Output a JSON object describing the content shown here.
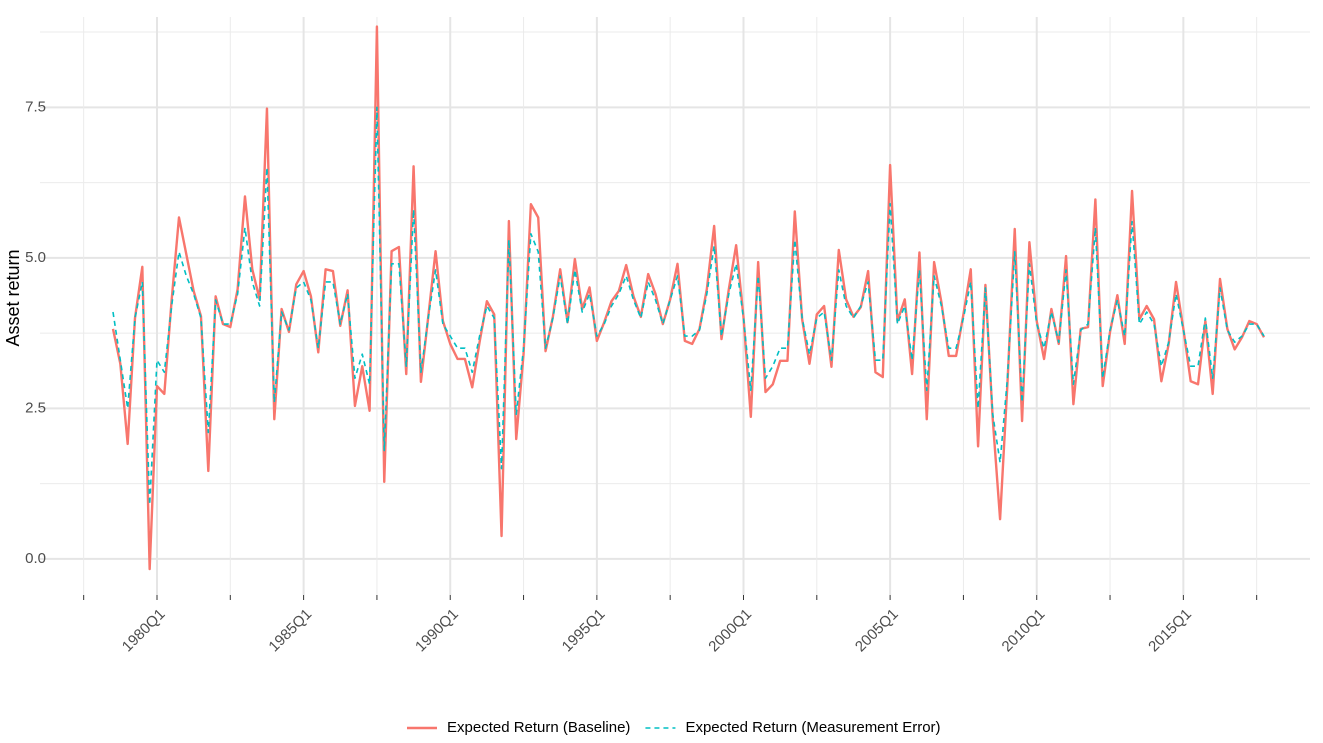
{
  "chart_data": {
    "type": "line",
    "y_label": "Asset return",
    "x": [
      "1978Q3",
      "1978Q4",
      "1979Q1",
      "1979Q2",
      "1979Q3",
      "1979Q4",
      "1980Q1",
      "1980Q2",
      "1980Q3",
      "1980Q4",
      "1981Q1",
      "1981Q2",
      "1981Q3",
      "1981Q4",
      "1982Q1",
      "1982Q2",
      "1982Q3",
      "1982Q4",
      "1983Q1",
      "1983Q2",
      "1983Q3",
      "1983Q4",
      "1984Q1",
      "1984Q2",
      "1984Q3",
      "1984Q4",
      "1985Q1",
      "1985Q2",
      "1985Q3",
      "1985Q4",
      "1986Q1",
      "1986Q2",
      "1986Q3",
      "1986Q4",
      "1987Q1",
      "1987Q2",
      "1987Q3",
      "1987Q4",
      "1988Q1",
      "1988Q2",
      "1988Q3",
      "1988Q4",
      "1989Q1",
      "1989Q2",
      "1989Q3",
      "1989Q4",
      "1990Q1",
      "1990Q2",
      "1990Q3",
      "1990Q4",
      "1991Q1",
      "1991Q2",
      "1991Q3",
      "1991Q4",
      "1992Q1",
      "1992Q2",
      "1992Q3",
      "1992Q4",
      "1993Q1",
      "1993Q2",
      "1993Q3",
      "1993Q4",
      "1994Q1",
      "1994Q2",
      "1994Q3",
      "1994Q4",
      "1995Q1",
      "1995Q2",
      "1995Q3",
      "1995Q4",
      "1996Q1",
      "1996Q2",
      "1996Q3",
      "1996Q4",
      "1997Q1",
      "1997Q2",
      "1997Q3",
      "1997Q4",
      "1998Q1",
      "1998Q2",
      "1998Q3",
      "1998Q4",
      "1999Q1",
      "1999Q2",
      "1999Q3",
      "1999Q4",
      "2000Q1",
      "2000Q2",
      "2000Q3",
      "2000Q4",
      "2001Q1",
      "2001Q2",
      "2001Q3",
      "2001Q4",
      "2002Q1",
      "2002Q2",
      "2002Q3",
      "2002Q4",
      "2003Q1",
      "2003Q2",
      "2003Q3",
      "2003Q4",
      "2004Q1",
      "2004Q2",
      "2004Q3",
      "2004Q4",
      "2005Q1",
      "2005Q2",
      "2005Q3",
      "2005Q4",
      "2006Q1",
      "2006Q2",
      "2006Q3",
      "2006Q4",
      "2007Q1",
      "2007Q2",
      "2007Q3",
      "2007Q4",
      "2008Q1",
      "2008Q2",
      "2008Q3",
      "2008Q4",
      "2009Q1",
      "2009Q2",
      "2009Q3",
      "2009Q4",
      "2010Q1",
      "2010Q2",
      "2010Q3",
      "2010Q4",
      "2011Q1",
      "2011Q2",
      "2011Q3",
      "2011Q4",
      "2012Q1",
      "2012Q2",
      "2012Q3",
      "2012Q4",
      "2013Q1",
      "2013Q2",
      "2013Q3",
      "2013Q4",
      "2014Q1",
      "2014Q2",
      "2014Q3",
      "2014Q4",
      "2015Q1",
      "2015Q2",
      "2015Q3",
      "2015Q4",
      "2016Q1",
      "2016Q2",
      "2016Q3",
      "2016Q4",
      "2017Q1",
      "2017Q2",
      "2017Q3",
      "2017Q4"
    ],
    "series": [
      {
        "name": "Expected Return (Baseline)",
        "color": "#F8766D",
        "dash": false,
        "values": [
          3.82,
          3.24,
          1.91,
          4.0,
          4.85,
          -0.17,
          2.87,
          2.74,
          4.3,
          5.67,
          5.06,
          4.45,
          4.03,
          1.46,
          4.36,
          3.9,
          3.85,
          4.48,
          6.02,
          4.81,
          4.31,
          7.48,
          2.32,
          4.15,
          3.77,
          4.56,
          4.78,
          4.36,
          3.43,
          4.81,
          4.78,
          3.87,
          4.46,
          2.54,
          3.2,
          2.46,
          8.84,
          1.28,
          5.11,
          5.18,
          3.07,
          6.52,
          2.94,
          4.02,
          5.11,
          3.95,
          3.57,
          3.32,
          3.32,
          2.85,
          3.6,
          4.28,
          4.06,
          0.38,
          5.61,
          1.99,
          3.4,
          5.89,
          5.67,
          3.45,
          4.02,
          4.81,
          3.93,
          4.98,
          4.15,
          4.51,
          3.62,
          3.93,
          4.28,
          4.45,
          4.88,
          4.36,
          4.02,
          4.73,
          4.4,
          3.9,
          4.31,
          4.9,
          3.62,
          3.57,
          3.82,
          4.48,
          5.53,
          3.65,
          4.48,
          5.21,
          4.02,
          2.36,
          4.93,
          2.77,
          2.9,
          3.29,
          3.29,
          5.77,
          3.98,
          3.24,
          4.06,
          4.2,
          3.19,
          5.13,
          4.31,
          4.02,
          4.18,
          4.78,
          3.1,
          3.02,
          6.54,
          3.95,
          4.31,
          3.07,
          5.09,
          2.32,
          4.93,
          4.26,
          3.37,
          3.37,
          4.06,
          4.81,
          1.87,
          4.55,
          2.32,
          0.66,
          2.9,
          5.48,
          2.29,
          5.26,
          3.95,
          3.32,
          4.15,
          3.57,
          5.03,
          2.57,
          3.82,
          3.85,
          5.97,
          2.87,
          3.77,
          4.38,
          3.57,
          6.11,
          3.98,
          4.2,
          3.98,
          2.95,
          3.57,
          4.6,
          3.82,
          2.95,
          2.9,
          3.95,
          2.74,
          4.65,
          3.82,
          3.48,
          3.68,
          3.95,
          3.9,
          3.68
        ]
      },
      {
        "name": "Expected Return (Measurement Error)",
        "color": "#00BFC4",
        "dash": true,
        "values": [
          4.1,
          3.3,
          2.5,
          4.0,
          4.6,
          0.9,
          3.3,
          3.1,
          4.2,
          5.1,
          4.7,
          4.4,
          4.0,
          2.1,
          4.3,
          3.9,
          3.9,
          4.4,
          5.5,
          4.6,
          4.2,
          6.5,
          2.6,
          4.1,
          3.8,
          4.5,
          4.6,
          4.3,
          3.5,
          4.6,
          4.6,
          3.9,
          4.4,
          3.0,
          3.4,
          2.9,
          7.5,
          1.8,
          4.9,
          4.9,
          3.2,
          5.8,
          3.1,
          4.0,
          4.8,
          3.9,
          3.7,
          3.5,
          3.5,
          3.1,
          3.7,
          4.2,
          4.0,
          1.5,
          5.3,
          2.4,
          3.5,
          5.4,
          5.1,
          3.5,
          4.0,
          4.7,
          3.9,
          4.8,
          4.1,
          4.4,
          3.7,
          3.9,
          4.2,
          4.4,
          4.7,
          4.3,
          4.0,
          4.6,
          4.3,
          3.9,
          4.3,
          4.7,
          3.7,
          3.7,
          3.8,
          4.4,
          5.2,
          3.7,
          4.4,
          4.9,
          4.0,
          2.8,
          4.7,
          3.0,
          3.2,
          3.5,
          3.5,
          5.3,
          4.0,
          3.4,
          4.0,
          4.1,
          3.3,
          4.8,
          4.2,
          4.0,
          4.2,
          4.6,
          3.3,
          3.3,
          5.9,
          3.9,
          4.2,
          3.3,
          4.8,
          2.8,
          4.7,
          4.2,
          3.5,
          3.5,
          4.0,
          4.6,
          2.5,
          4.5,
          2.4,
          1.6,
          3.0,
          5.1,
          2.6,
          4.9,
          3.9,
          3.5,
          4.1,
          3.6,
          4.8,
          2.9,
          3.8,
          3.9,
          5.5,
          3.0,
          3.8,
          4.3,
          3.7,
          5.6,
          3.9,
          4.1,
          3.9,
          3.2,
          3.6,
          4.4,
          3.8,
          3.2,
          3.2,
          4.0,
          3.0,
          4.5,
          3.8,
          3.6,
          3.7,
          3.9,
          3.9,
          3.7
        ]
      }
    ],
    "xticks": [
      "1980Q1",
      "1985Q1",
      "1990Q1",
      "1995Q1",
      "2000Q1",
      "2005Q1",
      "2010Q1",
      "2015Q1"
    ],
    "ylim": [
      -0.6,
      9.0
    ],
    "yticks": [
      {
        "value": 0,
        "label": "0.0"
      },
      2.5,
      {
        "value": 5,
        "label": "5.0"
      },
      7.5
    ],
    "grid": true,
    "legend": "bottom"
  }
}
